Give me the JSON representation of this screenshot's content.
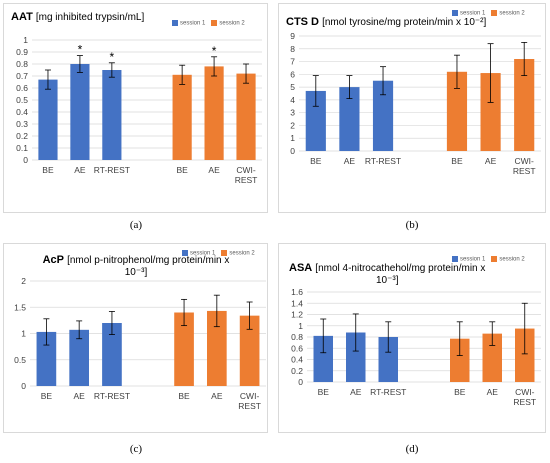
{
  "colors": {
    "session1": "#4472c4",
    "session2": "#ed7d31",
    "axis": "#d9d9d9",
    "text": "#000000"
  },
  "captions": [
    "(a)",
    "(b)",
    "(c)",
    "(d)"
  ],
  "chart_data": [
    {
      "type": "bar",
      "title": "AAT",
      "unit": "[mg inhibited trypsin/mL]",
      "legend": [
        "session 1",
        "session 2"
      ],
      "categories": [
        "BE",
        "AE",
        "RT-REST",
        "BE",
        "AE",
        "CWI-REST"
      ],
      "category_lines": [
        [
          "BE"
        ],
        [
          "AE"
        ],
        [
          "RT-REST"
        ],
        [
          "BE"
        ],
        [
          "AE"
        ],
        [
          "CWI-",
          "REST"
        ]
      ],
      "session": [
        1,
        1,
        1,
        2,
        2,
        2
      ],
      "values": [
        0.67,
        0.8,
        0.75,
        0.71,
        0.78,
        0.72
      ],
      "errors": [
        0.08,
        0.07,
        0.06,
        0.08,
        0.08,
        0.08
      ],
      "significant": [
        false,
        true,
        true,
        false,
        true,
        false
      ],
      "yticks": [
        "0",
        "0.1",
        "0.2",
        "0.3",
        "0.4",
        "0.5",
        "0.6",
        "0.7",
        "0.8",
        "0.9",
        "1"
      ],
      "ylim": [
        0,
        1
      ]
    },
    {
      "type": "bar",
      "title": "CTS D",
      "unit": "[nmol tyrosine/mg protein/min x 10⁻²]",
      "legend": [
        "session 1",
        "session 2"
      ],
      "categories": [
        "BE",
        "AE",
        "RT-REST",
        "BE",
        "AE",
        "CWI-REST"
      ],
      "category_lines": [
        [
          "BE"
        ],
        [
          "AE"
        ],
        [
          "RT-REST"
        ],
        [
          "BE"
        ],
        [
          "AE"
        ],
        [
          "CWI-",
          "REST"
        ]
      ],
      "session": [
        1,
        1,
        1,
        2,
        2,
        2
      ],
      "values": [
        4.7,
        5.0,
        5.5,
        6.2,
        6.1,
        7.2
      ],
      "errors": [
        1.2,
        0.9,
        1.1,
        1.3,
        2.3,
        1.3
      ],
      "significant": [
        false,
        false,
        false,
        false,
        false,
        false
      ],
      "yticks": [
        "0",
        "1",
        "2",
        "3",
        "4",
        "5",
        "6",
        "7",
        "8",
        "9"
      ],
      "ylim": [
        0,
        9
      ]
    },
    {
      "type": "bar",
      "title": "AcP",
      "unit": "[nmol p-nitrophenol/mg protein/min x",
      "unit_line2": "10⁻³]",
      "legend": [
        "session 1",
        "session 2"
      ],
      "categories": [
        "BE",
        "AE",
        "RT-REST",
        "BE",
        "AE",
        "CWI-REST"
      ],
      "category_lines": [
        [
          "BE"
        ],
        [
          "AE"
        ],
        [
          "RT-REST"
        ],
        [
          "BE"
        ],
        [
          "AE"
        ],
        [
          "CWI-",
          "REST"
        ]
      ],
      "session": [
        1,
        1,
        1,
        2,
        2,
        2
      ],
      "values": [
        1.03,
        1.07,
        1.2,
        1.4,
        1.43,
        1.34
      ],
      "errors": [
        0.25,
        0.17,
        0.22,
        0.25,
        0.3,
        0.26
      ],
      "significant": [
        false,
        false,
        false,
        false,
        false,
        false
      ],
      "yticks": [
        "0",
        "0.5",
        "1",
        "1.5",
        "2"
      ],
      "ylim": [
        0,
        2
      ]
    },
    {
      "type": "bar",
      "title": "ASA",
      "unit": "[nmol 4-nitrocathehol/mg protein/min x",
      "unit_line2": "10⁻³]",
      "legend": [
        "session 1",
        "session 2"
      ],
      "categories": [
        "BE",
        "AE",
        "RT-REST",
        "BE",
        "AE",
        "CWI-REST"
      ],
      "category_lines": [
        [
          "BE"
        ],
        [
          "AE"
        ],
        [
          "RT-REST"
        ],
        [
          "BE"
        ],
        [
          "AE"
        ],
        [
          "CWI-",
          "REST"
        ]
      ],
      "session": [
        1,
        1,
        1,
        2,
        2,
        2
      ],
      "values": [
        0.82,
        0.88,
        0.8,
        0.77,
        0.86,
        0.95
      ],
      "errors": [
        0.3,
        0.33,
        0.27,
        0.3,
        0.21,
        0.45
      ],
      "significant": [
        false,
        false,
        false,
        false,
        false,
        false
      ],
      "yticks": [
        "0",
        "0.2",
        "0.4",
        "0.6",
        "0.8",
        "1",
        "1.2",
        "1.4",
        "1.6"
      ],
      "ylim": [
        0,
        1.6
      ]
    }
  ]
}
